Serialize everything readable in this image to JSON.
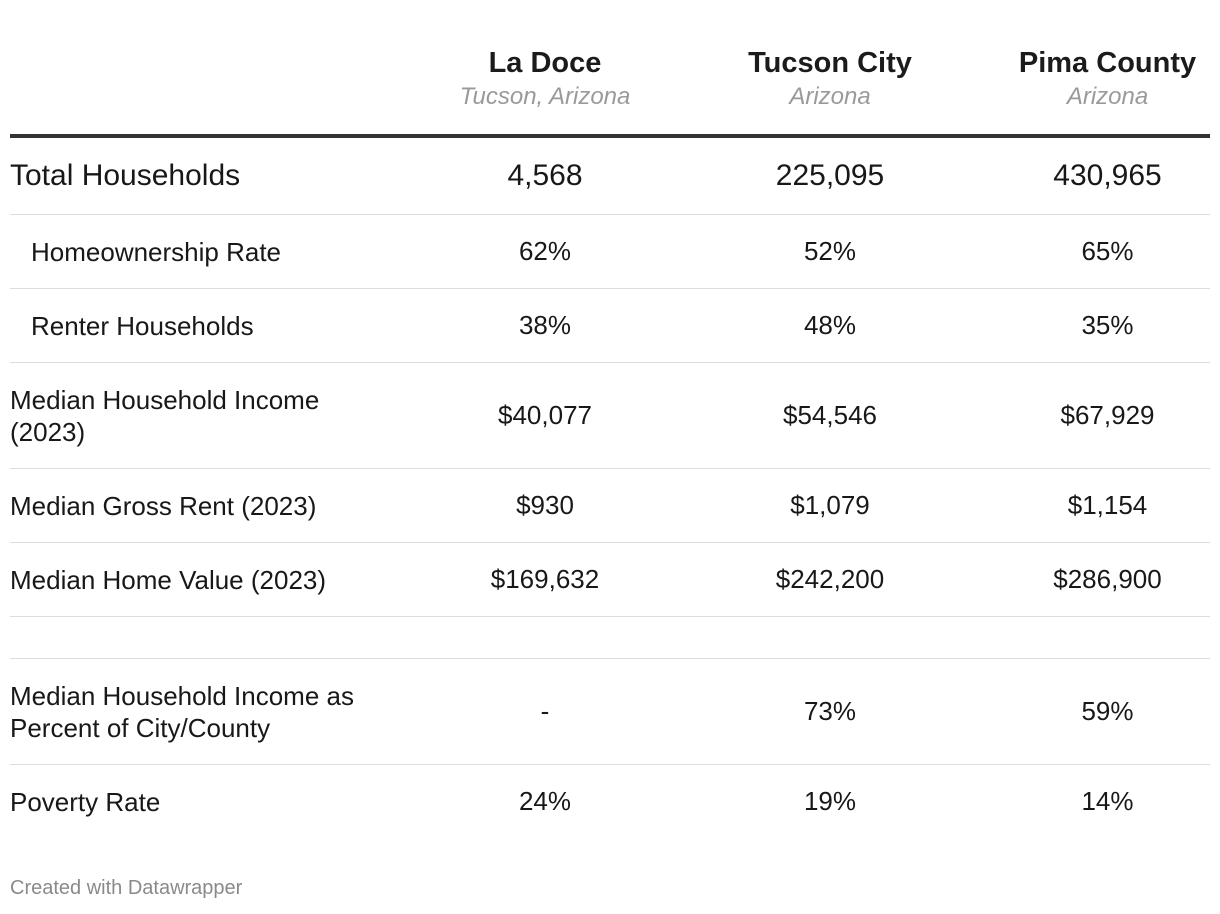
{
  "chart_data": {
    "type": "table",
    "columns": [
      {
        "name": "La Doce",
        "subtitle": "Tucson, Arizona"
      },
      {
        "name": "Tucson City",
        "subtitle": "Arizona"
      },
      {
        "name": "Pima County",
        "subtitle": "Arizona"
      }
    ],
    "rows": [
      {
        "label": "Total Households",
        "values": [
          "4,568",
          "225,095",
          "430,965"
        ]
      },
      {
        "label": "Homeownership Rate",
        "values": [
          "62%",
          "52%",
          "65%"
        ]
      },
      {
        "label": "Renter Households",
        "values": [
          "38%",
          "48%",
          "35%"
        ]
      },
      {
        "label": "Median Household Income (2023)",
        "values": [
          "$40,077",
          "$54,546",
          "$67,929"
        ]
      },
      {
        "label": "Median Gross Rent (2023)",
        "values": [
          "$930",
          "$1,079",
          "$1,154"
        ]
      },
      {
        "label": "Median Home Value (2023)",
        "values": [
          "$169,632",
          "$242,200",
          "$286,900"
        ]
      },
      {
        "label": "",
        "values": [
          "",
          "",
          ""
        ]
      },
      {
        "label": "Median Household Income as Percent of City/County",
        "values": [
          "-",
          "73%",
          "59%"
        ]
      },
      {
        "label": "Poverty Rate",
        "values": [
          "24%",
          "19%",
          "14%"
        ]
      }
    ]
  },
  "footer": "Created with Datawrapper"
}
